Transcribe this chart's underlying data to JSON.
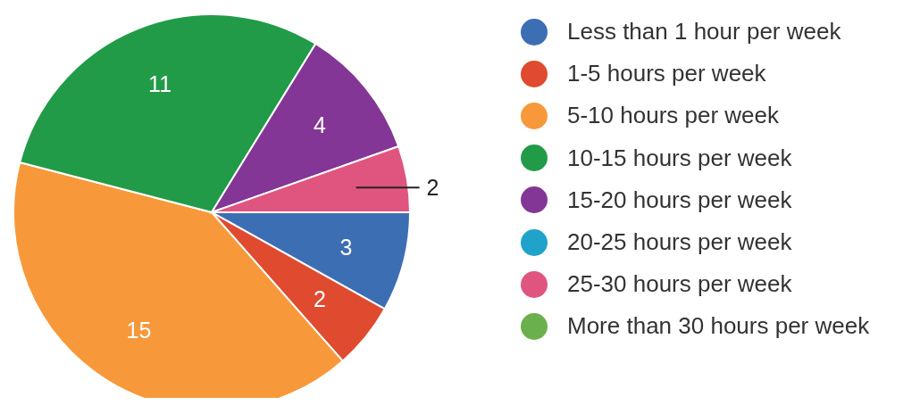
{
  "chart_data": {
    "type": "pie",
    "categories": [
      "Less than 1 hour per week",
      "1-5 hours per week",
      "5-10 hours per week",
      "10-15 hours per week",
      "15-20 hours per week",
      "20-25 hours per week",
      "25-30 hours per week",
      "More than 30 hours per week"
    ],
    "values": [
      3,
      2,
      15,
      11,
      4,
      0,
      2,
      0
    ],
    "colors": [
      "#3c6eb4",
      "#e04a2f",
      "#f7993a",
      "#229b48",
      "#833695",
      "#1fa3c8",
      "#e0557f",
      "#6ab04c"
    ],
    "value_labels": [
      "3",
      "2",
      "15",
      "11",
      "4",
      null,
      "2",
      null
    ],
    "legend": "right"
  }
}
